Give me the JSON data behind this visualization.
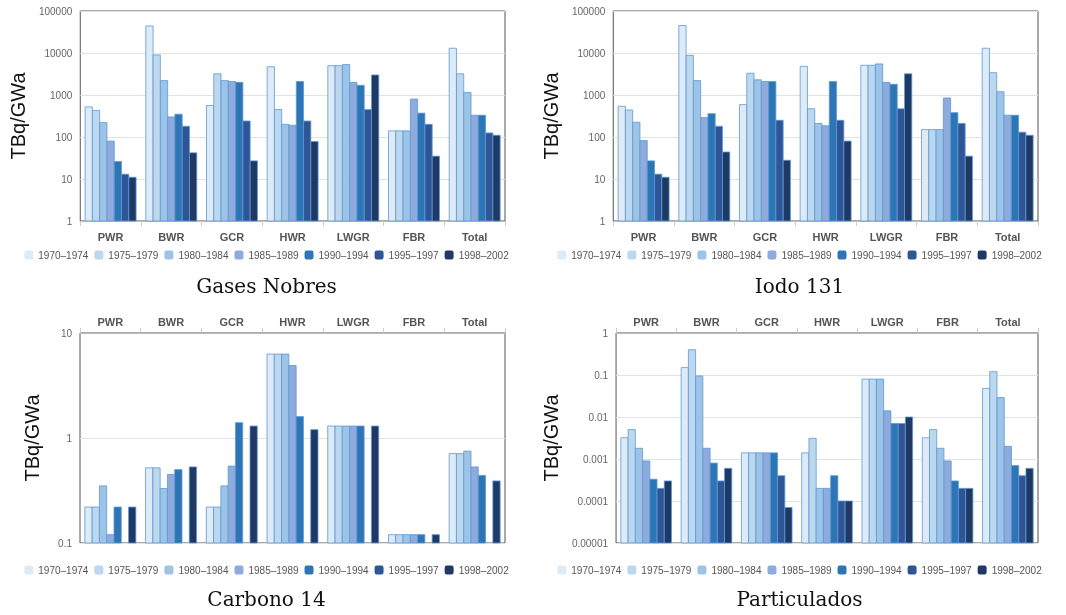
{
  "chart_data": [
    {
      "type": "bar",
      "title": "Gases Nobres",
      "ylabel": "TBq/GWa",
      "categories": [
        "PWR",
        "BWR",
        "GCR",
        "HWR",
        "LWGR",
        "FBR",
        "Total"
      ],
      "log": "y",
      "ylim": [
        1,
        100000
      ],
      "yticks": [
        1,
        10,
        100,
        1000,
        10000,
        100000
      ],
      "grid": "y",
      "legend": "bottom",
      "series": [
        {
          "name": "1970–1974",
          "color": "#deebf7",
          "values": [
            520,
            44000,
            560,
            4700,
            5000,
            140,
            13000
          ]
        },
        {
          "name": "1975–1979",
          "color": "#bdd7ee",
          "values": [
            430,
            9000,
            3200,
            450,
            5000,
            140,
            3200
          ]
        },
        {
          "name": "1980–1984",
          "color": "#9dc3e6",
          "values": [
            220,
            2200,
            2200,
            200,
            5300,
            140,
            1150
          ]
        },
        {
          "name": "1985–1989",
          "color": "#8faadc",
          "values": [
            80,
            300,
            2100,
            190,
            2000,
            800,
            330
          ]
        },
        {
          "name": "1990–1994",
          "color": "#2e75b6",
          "values": [
            26,
            350,
            2000,
            2100,
            1700,
            370,
            330
          ]
        },
        {
          "name": "1995–1997",
          "color": "#2f5597",
          "values": [
            13,
            180,
            240,
            240,
            450,
            200,
            125
          ]
        },
        {
          "name": "1998–2002",
          "color": "#203864",
          "values": [
            11,
            42,
            27,
            78,
            3000,
            35,
            110
          ]
        }
      ]
    },
    {
      "type": "bar",
      "title": "Iodo 131",
      "ylabel": "TBq/GWa",
      "categories": [
        "PWR",
        "BWR",
        "GCR",
        "HWR",
        "LWGR",
        "FBR",
        "Total"
      ],
      "log": "y",
      "ylim": [
        1,
        100000
      ],
      "yticks": [
        1,
        10,
        100,
        1000,
        10000,
        100000
      ],
      "grid": "y",
      "legend": "bottom",
      "series": [
        {
          "name": "1970–1974",
          "color": "#deebf7",
          "values": [
            540,
            45000,
            590,
            4800,
            5100,
            150,
            13000
          ]
        },
        {
          "name": "1975–1979",
          "color": "#bdd7ee",
          "values": [
            440,
            8800,
            3300,
            470,
            5100,
            150,
            3400
          ]
        },
        {
          "name": "1980–1984",
          "color": "#9dc3e6",
          "values": [
            225,
            2200,
            2300,
            210,
            5500,
            150,
            1200
          ]
        },
        {
          "name": "1985–1989",
          "color": "#8faadc",
          "values": [
            82,
            290,
            2100,
            185,
            2000,
            850,
            330
          ]
        },
        {
          "name": "1990–1994",
          "color": "#2e75b6",
          "values": [
            27,
            360,
            2100,
            2100,
            1800,
            380,
            330
          ]
        },
        {
          "name": "1995–1997",
          "color": "#2f5597",
          "values": [
            13,
            180,
            250,
            250,
            470,
            210,
            130
          ]
        },
        {
          "name": "1998–2002",
          "color": "#203864",
          "values": [
            11,
            44,
            28,
            80,
            3200,
            35,
            110
          ]
        }
      ]
    },
    {
      "type": "bar",
      "title": "Carbono 14",
      "ylabel": "TBq/GWa",
      "categories": [
        "PWR",
        "BWR",
        "GCR",
        "HWR",
        "LWGR",
        "FBR",
        "Total"
      ],
      "log": "y",
      "ylim": [
        0.1,
        10
      ],
      "yticks": [
        0.1,
        1,
        10
      ],
      "grid": "y",
      "legend": "bottom",
      "series": [
        {
          "name": "1970–1974",
          "color": "#deebf7",
          "values": [
            0.22,
            0.52,
            0.22,
            6.3,
            1.3,
            0.12,
            0.71
          ]
        },
        {
          "name": "1975–1979",
          "color": "#bdd7ee",
          "values": [
            0.22,
            0.52,
            0.22,
            6.3,
            1.3,
            0.12,
            0.71
          ]
        },
        {
          "name": "1980–1984",
          "color": "#9dc3e6",
          "values": [
            0.35,
            0.33,
            0.35,
            6.3,
            1.3,
            0.12,
            0.75
          ]
        },
        {
          "name": "1985–1989",
          "color": "#8faadc",
          "values": [
            0.12,
            0.45,
            0.54,
            4.9,
            1.3,
            0.12,
            0.53
          ]
        },
        {
          "name": "1990–1994",
          "color": "#2e75b6",
          "values": [
            0.22,
            0.5,
            1.4,
            1.6,
            1.3,
            0.12,
            0.44
          ]
        },
        {
          "name": "1995–1997",
          "color": "#2f5597",
          "values": [
            null,
            null,
            null,
            null,
            null,
            null,
            null
          ]
        },
        {
          "name": "1998–2002",
          "color": "#203864",
          "values": [
            0.22,
            0.53,
            1.3,
            1.2,
            1.3,
            0.12,
            0.39
          ]
        }
      ]
    },
    {
      "type": "bar",
      "title": "Particulados",
      "ylabel": "TBq/GWa",
      "categories": [
        "PWR",
        "BWR",
        "GCR",
        "HWR",
        "LWGR",
        "FBR",
        "Total"
      ],
      "log": "y",
      "ylim": [
        1e-05,
        1
      ],
      "yticks": [
        {
          "value": 1e-05,
          "label": "0.00001"
        },
        0.0001,
        0.001,
        0.01,
        0.1,
        1
      ],
      "grid": "y",
      "legend": "bottom",
      "series": [
        {
          "name": "1970–1974",
          "color": "#deebf7",
          "values": [
            0.0032,
            0.15,
            0.0014,
            0.0014,
            0.08,
            0.0032,
            0.048
          ]
        },
        {
          "name": "1975–1979",
          "color": "#bdd7ee",
          "values": [
            0.005,
            0.4,
            0.0014,
            0.0031,
            0.08,
            0.005,
            0.12
          ]
        },
        {
          "name": "1980–1984",
          "color": "#9dc3e6",
          "values": [
            0.0018,
            0.095,
            0.0014,
            0.0002,
            0.08,
            0.0018,
            0.029
          ]
        },
        {
          "name": "1985–1989",
          "color": "#8faadc",
          "values": [
            0.0009,
            0.0018,
            0.0014,
            0.0002,
            0.014,
            0.0009,
            0.002
          ]
        },
        {
          "name": "1990–1994",
          "color": "#2e75b6",
          "values": [
            0.00033,
            0.0008,
            0.0014,
            0.0004,
            0.007,
            0.0003,
            0.0007
          ]
        },
        {
          "name": "1995–1997",
          "color": "#2f5597",
          "values": [
            0.0002,
            0.0003,
            0.0004,
            0.0001,
            0.007,
            0.0002,
            0.0004
          ]
        },
        {
          "name": "1998–2002",
          "color": "#203864",
          "values": [
            0.0003,
            0.0006,
            7e-05,
            0.0001,
            0.01,
            0.0002,
            0.0006
          ]
        }
      ]
    }
  ]
}
